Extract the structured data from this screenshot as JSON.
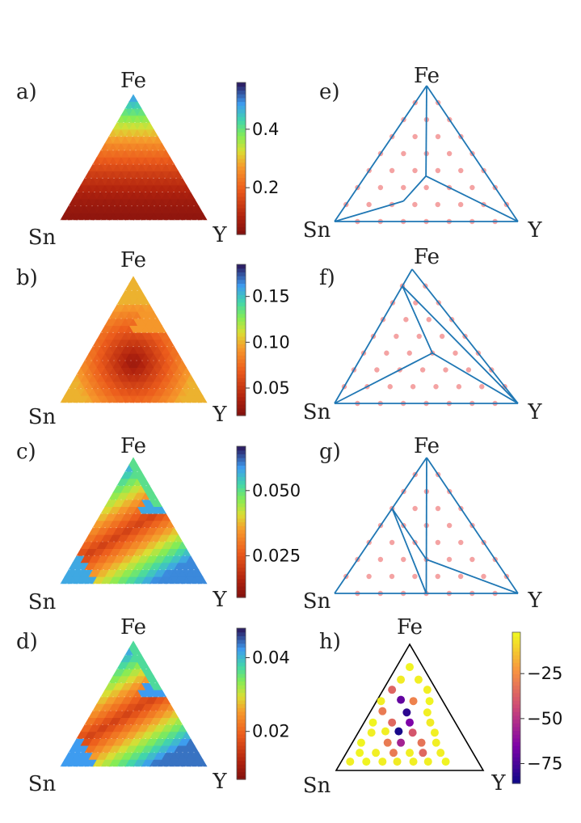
{
  "chart_data": [
    {
      "panel": "a)",
      "type": "heatmap",
      "title": "",
      "vertex_labels": {
        "top": "Fe",
        "left": "Sn",
        "right": "Y"
      },
      "colormap": "turbo (reversed, alpha 0.7)",
      "colorbar": {
        "range": [
          0.04,
          0.56
        ],
        "ticks": [
          0.2,
          0.4
        ],
        "tick_labels": [
          "0.2",
          "0.4"
        ]
      },
      "field": {
        "kind": "top_gradient",
        "params": [
          0.06,
          0.5,
          1.6,
          0.05
        ]
      }
    },
    {
      "panel": "b)",
      "type": "heatmap",
      "title": "",
      "vertex_labels": {
        "top": "Fe",
        "left": "Sn",
        "right": "Y"
      },
      "colormap": "turbo (reversed, alpha 0.7)",
      "colorbar": {
        "range": [
          0.02,
          0.185
        ],
        "ticks": [
          0.05,
          0.1,
          0.15
        ],
        "tick_labels": [
          "0.05",
          "0.10",
          "0.15"
        ]
      },
      "field": {
        "kind": "center_bowl",
        "params": [
          0.03,
          0.1,
          0.06,
          0.05
        ]
      }
    },
    {
      "panel": "c)",
      "type": "heatmap",
      "title": "",
      "vertex_labels": {
        "top": "Fe",
        "left": "Sn",
        "right": "Y"
      },
      "colormap": "turbo (reversed, alpha 0.7)",
      "colorbar": {
        "range": [
          0.009,
          0.067
        ],
        "ticks": [
          0.025,
          0.05
        ],
        "tick_labels": [
          "0.025",
          "0.050"
        ]
      },
      "field": {
        "kind": "diagonal_valley",
        "params": [
          0.012,
          0.06,
          0.045,
          0.05
        ]
      }
    },
    {
      "panel": "d)",
      "type": "heatmap",
      "title": "",
      "vertex_labels": {
        "top": "Fe",
        "left": "Sn",
        "right": "Y"
      },
      "colormap": "turbo (reversed, alpha 0.7)",
      "colorbar": {
        "range": [
          0.007,
          0.048
        ],
        "ticks": [
          0.02,
          0.04
        ],
        "tick_labels": [
          "0.02",
          "0.04"
        ]
      },
      "field": {
        "kind": "diagonal_valley",
        "params": [
          0.009,
          0.044,
          0.032,
          0.05
        ]
      }
    },
    {
      "panel": "e)",
      "type": "scatter",
      "title": "",
      "vertex_labels": {
        "top": "Fe",
        "left": "Sn",
        "right": "Y"
      },
      "line_color": "#1f77b4",
      "point_color": "#f4a3a3",
      "grid_spacing": 0.125,
      "hull_vertices": [
        {
          "Fe": 1,
          "Sn": 0,
          "Y": 0
        },
        {
          "Fe": 0,
          "Sn": 1,
          "Y": 0
        },
        {
          "Fe": 0,
          "Sn": 0,
          "Y": 1
        },
        {
          "Fe": 0.333,
          "Sn": 0.333,
          "Y": 0.333
        },
        {
          "Fe": 0.15,
          "Sn": 0.55,
          "Y": 0.3
        },
        {
          "Fe": 0.1,
          "Sn": 0.1,
          "Y": 0.8
        }
      ],
      "hull_lines": [
        [
          0,
          1
        ],
        [
          1,
          2
        ],
        [
          2,
          0
        ],
        [
          0,
          3
        ],
        [
          3,
          4
        ],
        [
          4,
          1
        ],
        [
          3,
          5
        ],
        [
          5,
          2
        ]
      ]
    },
    {
      "panel": "f)",
      "type": "scatter",
      "title": "",
      "vertex_labels": {
        "top": "Fe",
        "left": "Sn",
        "right": "Y"
      },
      "line_color": "#1f77b4",
      "point_color": "#f4a3a3",
      "grid_spacing": 0.125,
      "hull_vertices": [
        {
          "Fe": 1,
          "Sn": 0,
          "Y": 0
        },
        {
          "Fe": 0,
          "Sn": 1,
          "Y": 0
        },
        {
          "Fe": 0,
          "Sn": 0,
          "Y": 1
        },
        {
          "Fe": 0.875,
          "Sn": 0.125,
          "Y": 0
        },
        {
          "Fe": 0.375,
          "Sn": 0.25,
          "Y": 0.375
        }
      ],
      "hull_lines": [
        [
          0,
          1
        ],
        [
          1,
          2
        ],
        [
          2,
          0
        ],
        [
          3,
          2
        ],
        [
          3,
          4
        ],
        [
          4,
          1
        ],
        [
          4,
          2
        ]
      ]
    },
    {
      "panel": "g)",
      "type": "scatter",
      "title": "",
      "vertex_labels": {
        "top": "Fe",
        "left": "Sn",
        "right": "Y"
      },
      "line_color": "#1f77b4",
      "point_color": "#f4a3a3",
      "grid_spacing": 0.125,
      "hull_vertices": [
        {
          "Fe": 1,
          "Sn": 0,
          "Y": 0
        },
        {
          "Fe": 0,
          "Sn": 1,
          "Y": 0
        },
        {
          "Fe": 0,
          "Sn": 0,
          "Y": 1
        },
        {
          "Fe": 0.625,
          "Sn": 0.375,
          "Y": 0
        },
        {
          "Fe": 0.25,
          "Sn": 0.375,
          "Y": 0.375
        },
        {
          "Fe": 0,
          "Sn": 0.5,
          "Y": 0.5
        }
      ],
      "hull_lines": [
        [
          0,
          1
        ],
        [
          1,
          2
        ],
        [
          2,
          0
        ],
        [
          3,
          5
        ],
        [
          3,
          4
        ],
        [
          0,
          4
        ],
        [
          4,
          5
        ],
        [
          4,
          2
        ]
      ]
    },
    {
      "panel": "h)",
      "type": "scatter",
      "title": "",
      "vertex_labels": {
        "top": "Fe",
        "left": "Sn",
        "right": "Y"
      },
      "colormap": "plasma",
      "colorbar": {
        "range": [
          -86,
          -2
        ],
        "ticks": [
          -25,
          -50,
          -75
        ],
        "tick_labels": [
          "−25",
          "−50",
          "−75"
        ]
      },
      "points": [
        {
          "Fe": 0.82,
          "Y": 0.09,
          "value": -3
        },
        {
          "Fe": 0.72,
          "Y": 0.08,
          "value": -5
        },
        {
          "Fe": 0.72,
          "Y": 0.2,
          "value": -4
        },
        {
          "Fe": 0.64,
          "Y": 0.06,
          "value": -36
        },
        {
          "Fe": 0.64,
          "Y": 0.3,
          "value": -4
        },
        {
          "Fe": 0.55,
          "Y": 0.03,
          "value": -4
        },
        {
          "Fe": 0.56,
          "Y": 0.16,
          "value": -70
        },
        {
          "Fe": 0.55,
          "Y": 0.25,
          "value": -28
        },
        {
          "Fe": 0.55,
          "Y": 0.36,
          "value": -3
        },
        {
          "Fe": 0.47,
          "Y": 0.08,
          "value": -30
        },
        {
          "Fe": 0.46,
          "Y": 0.25,
          "value": -80
        },
        {
          "Fe": 0.46,
          "Y": 0.39,
          "value": -4
        },
        {
          "Fe": 0.38,
          "Y": 0.06,
          "value": -3
        },
        {
          "Fe": 0.38,
          "Y": 0.19,
          "value": -35
        },
        {
          "Fe": 0.38,
          "Y": 0.31,
          "value": -65
        },
        {
          "Fe": 0.38,
          "Y": 0.45,
          "value": -5
        },
        {
          "Fe": 0.3,
          "Y": 0.09,
          "value": -4
        },
        {
          "Fe": 0.31,
          "Y": 0.18,
          "value": -4
        },
        {
          "Fe": 0.31,
          "Y": 0.27,
          "value": -84
        },
        {
          "Fe": 0.3,
          "Y": 0.37,
          "value": -40
        },
        {
          "Fe": 0.3,
          "Y": 0.52,
          "value": -4
        },
        {
          "Fe": 0.22,
          "Y": 0.06,
          "value": -3
        },
        {
          "Fe": 0.22,
          "Y": 0.24,
          "value": -30
        },
        {
          "Fe": 0.22,
          "Y": 0.33,
          "value": -55
        },
        {
          "Fe": 0.22,
          "Y": 0.47,
          "value": -32
        },
        {
          "Fe": 0.22,
          "Y": 0.57,
          "value": -4
        },
        {
          "Fe": 0.14,
          "Y": 0.09,
          "value": -3
        },
        {
          "Fe": 0.14,
          "Y": 0.2,
          "value": -4
        },
        {
          "Fe": 0.14,
          "Y": 0.32,
          "value": -30
        },
        {
          "Fe": 0.14,
          "Y": 0.43,
          "value": -4
        },
        {
          "Fe": 0.14,
          "Y": 0.52,
          "value": -35
        },
        {
          "Fe": 0.14,
          "Y": 0.64,
          "value": -4
        },
        {
          "Fe": 0.07,
          "Y": 0.06,
          "value": -4
        },
        {
          "Fe": 0.07,
          "Y": 0.17,
          "value": -3
        },
        {
          "Fe": 0.07,
          "Y": 0.28,
          "value": -4
        },
        {
          "Fe": 0.07,
          "Y": 0.38,
          "value": -5
        },
        {
          "Fe": 0.07,
          "Y": 0.49,
          "value": -4
        },
        {
          "Fe": 0.07,
          "Y": 0.59,
          "value": -4
        },
        {
          "Fe": 0.07,
          "Y": 0.71,
          "value": -3
        }
      ]
    }
  ]
}
